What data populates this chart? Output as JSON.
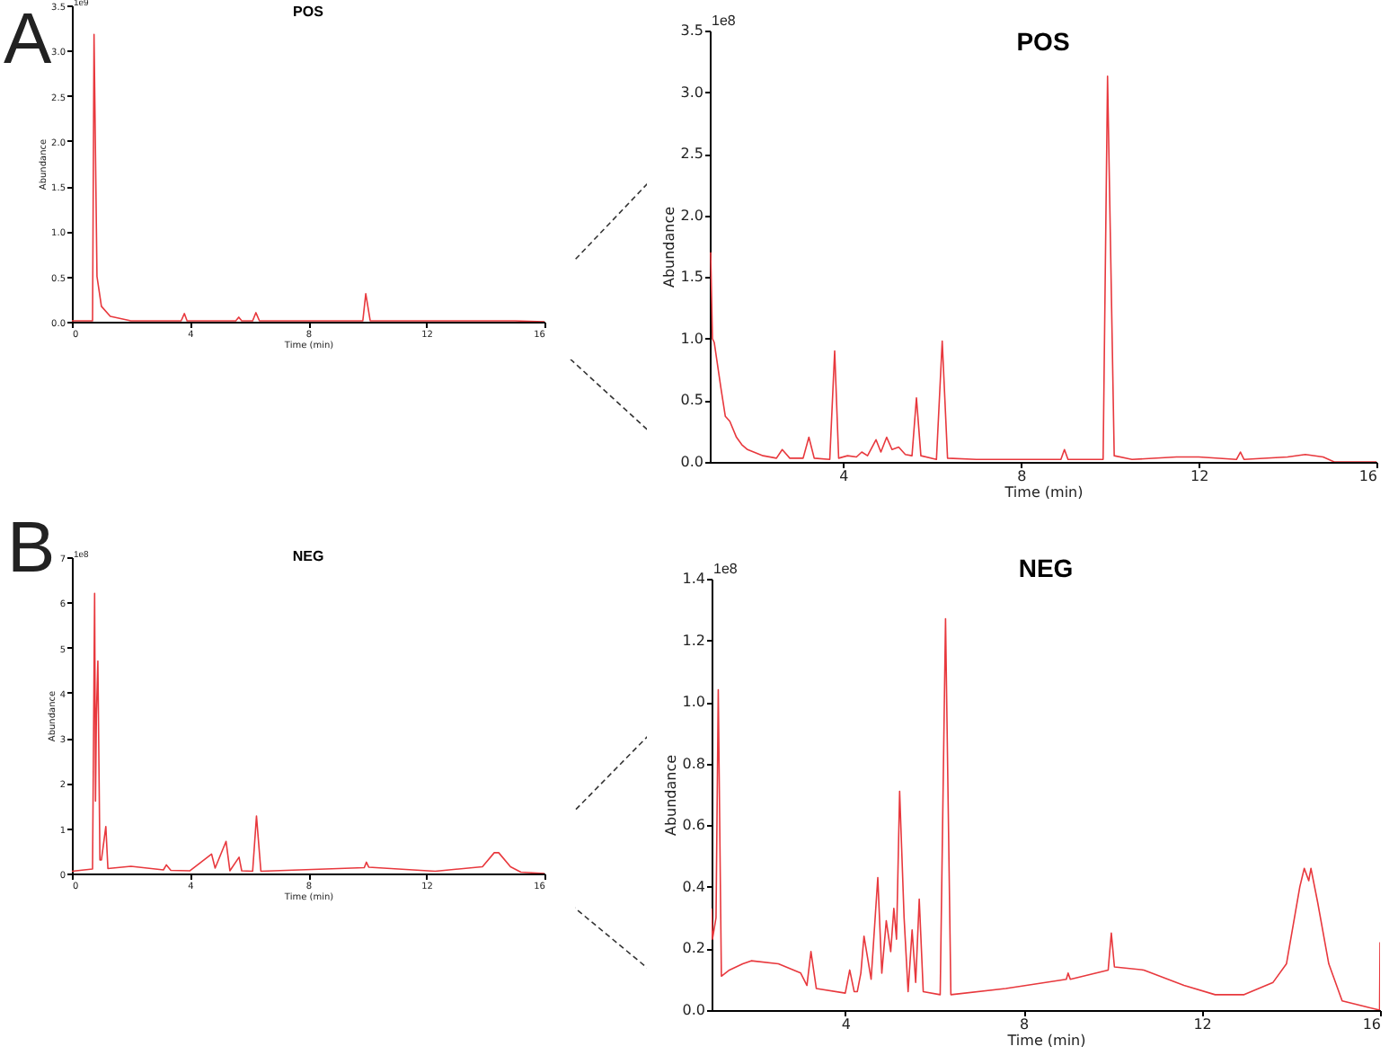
{
  "chart_data": [
    {
      "type": "line",
      "title": "POS",
      "xlabel": "Time (min)",
      "ylabel": "Abundance",
      "annotations": [
        "A",
        "1e9"
      ],
      "xlim": [
        0,
        16
      ],
      "xticks": [
        0,
        4,
        8,
        12,
        16
      ],
      "ylim": [
        0,
        3.5
      ],
      "yticks": [
        {
          "value": 0,
          "label": "0.0"
        },
        0.5,
        {
          "value": 1,
          "label": "1.0"
        },
        1.5,
        {
          "value": 2,
          "label": "2.0"
        },
        2.5,
        {
          "value": 3,
          "label": "3.0"
        },
        3.5
      ],
      "x": [
        0,
        0.7,
        0.75,
        0.85,
        1.0,
        1.3,
        2.0,
        3.7,
        3.81,
        3.9,
        5.55,
        5.65,
        5.75,
        6.12,
        6.23,
        6.35,
        9.85,
        9.95,
        10.1,
        15,
        16
      ],
      "series": [
        {
          "color": "#e8383d",
          "values": [
            0.01,
            0.01,
            3.18,
            0.5,
            0.17,
            0.06,
            0.01,
            0.01,
            0.09,
            0.01,
            0.01,
            0.05,
            0.01,
            0.01,
            0.1,
            0.01,
            0.01,
            0.31,
            0.01,
            0.01,
            0
          ]
        }
      ]
    },
    {
      "type": "line",
      "title": "POS",
      "xlabel": "Time (min)",
      "ylabel": "Abundance",
      "annotations": [
        "1e8"
      ],
      "xlim": [
        1,
        16
      ],
      "xticks": [
        4,
        8,
        12,
        16
      ],
      "ylim": [
        0,
        3.5
      ],
      "yticks": [
        {
          "value": 0,
          "label": "0.0"
        },
        0.5,
        {
          "value": 1,
          "label": "1.0"
        },
        1.5,
        {
          "value": 2,
          "label": "2.0"
        },
        2.5,
        {
          "value": 3,
          "label": "3.0"
        },
        3.5
      ],
      "x": [
        1.02,
        1.06,
        1.1,
        1.25,
        1.35,
        1.45,
        1.6,
        1.72,
        1.85,
        2.2,
        2.5,
        2.63,
        2.8,
        3.1,
        3.23,
        3.35,
        3.7,
        3.81,
        3.9,
        4.1,
        4.3,
        4.42,
        4.55,
        4.74,
        4.85,
        4.98,
        5.1,
        5.25,
        5.4,
        5.55,
        5.65,
        5.75,
        6.1,
        6.23,
        6.35,
        7,
        8.9,
        8.98,
        9.06,
        9.85,
        9.95,
        10.1,
        10.5,
        11.5,
        12,
        12.85,
        12.94,
        13.02,
        14,
        14.4,
        14.8,
        15.05,
        16
      ],
      "series": [
        {
          "color": "#e8383d",
          "values": [
            1.7,
            1.0,
            0.97,
            0.6,
            0.37,
            0.33,
            0.2,
            0.14,
            0.1,
            0.05,
            0.03,
            0.1,
            0.03,
            0.03,
            0.2,
            0.03,
            0.02,
            0.9,
            0.03,
            0.05,
            0.04,
            0.08,
            0.05,
            0.18,
            0.08,
            0.2,
            0.1,
            0.12,
            0.06,
            0.05,
            0.52,
            0.05,
            0.02,
            0.98,
            0.03,
            0.02,
            0.02,
            0.1,
            0.02,
            0.02,
            3.13,
            0.05,
            0.02,
            0.04,
            0.04,
            0.02,
            0.08,
            0.02,
            0.04,
            0.06,
            0.04,
            0,
            0
          ]
        }
      ]
    },
    {
      "type": "line",
      "title": "NEG",
      "xlabel": "Time (min)",
      "ylabel": "Abundance",
      "annotations": [
        "B",
        "1e8"
      ],
      "xlim": [
        0,
        16
      ],
      "xticks": [
        0,
        4,
        8,
        12,
        16
      ],
      "ylim": [
        0,
        7
      ],
      "yticks": [
        0,
        1,
        2,
        3,
        4,
        5,
        6,
        7
      ],
      "x": [
        0,
        0.7,
        0.77,
        0.8,
        0.83,
        0.88,
        0.95,
        1.0,
        1.15,
        1.22,
        2,
        3.1,
        3.2,
        3.35,
        4.0,
        4.73,
        4.85,
        5.22,
        5.35,
        5.66,
        5.75,
        6.12,
        6.25,
        6.4,
        9.9,
        9.97,
        10.05,
        12.3,
        13.9,
        14.3,
        14.45,
        14.85,
        15.2,
        16
      ],
      "series": [
        {
          "color": "#e8383d",
          "values": [
            0.05,
            0.1,
            6.2,
            1.6,
            3.5,
            4.7,
            0.3,
            0.3,
            1.04,
            0.11,
            0.16,
            0.08,
            0.19,
            0.07,
            0.06,
            0.43,
            0.12,
            0.71,
            0.06,
            0.36,
            0.06,
            0.05,
            1.27,
            0.05,
            0.13,
            0.25,
            0.14,
            0.05,
            0.15,
            0.46,
            0.46,
            0.15,
            0.03,
            0
          ]
        }
      ]
    },
    {
      "type": "line",
      "title": "NEG",
      "xlabel": "Time (min)",
      "ylabel": "Abundance",
      "annotations": [
        "1e8"
      ],
      "xlim": [
        1,
        16
      ],
      "xticks": [
        4,
        8,
        12,
        16
      ],
      "ylim": [
        0,
        1.4
      ],
      "yticks": [
        {
          "value": 0,
          "label": "0.0"
        },
        0.2,
        0.4,
        0.6,
        0.8,
        {
          "value": 1,
          "label": "1.0"
        },
        1.2,
        1.4
      ],
      "x": [
        1.0,
        1.02,
        1.1,
        1.15,
        1.22,
        1.4,
        1.7,
        1.89,
        2.5,
        3.0,
        3.14,
        3.23,
        3.35,
        4.0,
        4.1,
        4.2,
        4.27,
        4.35,
        4.42,
        4.58,
        4.73,
        4.82,
        4.92,
        5.02,
        5.09,
        5.15,
        5.22,
        5.32,
        5.41,
        5.5,
        5.58,
        5.66,
        5.75,
        6.13,
        6.25,
        6.37,
        7.6,
        8.96,
        9.0,
        9.05,
        9.9,
        9.97,
        10.04,
        10.7,
        11.6,
        12.3,
        12.95,
        13.6,
        13.9,
        14.2,
        14.3,
        14.4,
        14.45,
        14.6,
        14.85,
        15.15,
        15.7,
        15.99,
        16.0
      ],
      "series": [
        {
          "color": "#e8383d",
          "values": [
            0.33,
            0.23,
            0.3,
            1.04,
            0.11,
            0.13,
            0.15,
            0.16,
            0.15,
            0.12,
            0.08,
            0.19,
            0.07,
            0.055,
            0.13,
            0.06,
            0.06,
            0.12,
            0.24,
            0.1,
            0.43,
            0.12,
            0.29,
            0.19,
            0.33,
            0.23,
            0.71,
            0.3,
            0.06,
            0.26,
            0.09,
            0.36,
            0.06,
            0.05,
            1.27,
            0.05,
            0.07,
            0.1,
            0.12,
            0.1,
            0.13,
            0.25,
            0.14,
            0.13,
            0.08,
            0.05,
            0.05,
            0.09,
            0.15,
            0.4,
            0.46,
            0.42,
            0.46,
            0.35,
            0.15,
            0.03,
            0.01,
            0,
            0.22
          ]
        }
      ]
    }
  ]
}
